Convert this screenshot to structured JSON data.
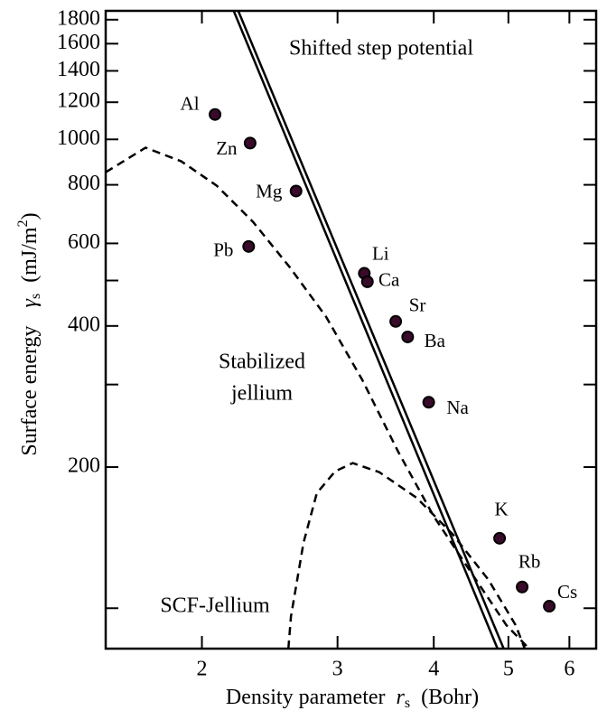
{
  "chart_data": {
    "type": "scatter",
    "xlabel": {
      "text": "Density parameter",
      "symbol": "r",
      "sub": "s",
      "unit": "(Bohr)"
    },
    "ylabel": {
      "text": "Surface energy",
      "symbol": "γ",
      "sub": "s",
      "unit_pre": "(mJ/m",
      "sup": "2",
      "unit_post": ")"
    },
    "xscale": "log",
    "yscale": "log",
    "xlim": [
      1.5,
      6.5
    ],
    "ylim": [
      82,
      1880
    ],
    "xticks": [
      2,
      3,
      4,
      5,
      6
    ],
    "yticks": [
      200,
      400,
      600,
      800,
      1000,
      1200,
      1400,
      1600,
      1800
    ],
    "yticks_minor": [
      100,
      300,
      500
    ],
    "points": {
      "color": "#3a0a2a",
      "labels": [
        "Al",
        "Zn",
        "Mg",
        "Pb",
        "Li",
        "Ca",
        "Sr",
        "Ba",
        "Na",
        "K",
        "Rb",
        "Cs"
      ],
      "x": [
        2.08,
        2.31,
        2.65,
        2.3,
        3.25,
        3.28,
        3.57,
        3.7,
        3.94,
        4.87,
        5.21,
        5.65
      ],
      "values": [
        1130,
        982,
        776,
        591,
        518,
        497,
        409,
        379,
        275,
        141,
        111,
        101
      ]
    },
    "lines": [
      {
        "dash": false,
        "x": [
          2.2,
          4.84
        ],
        "values": [
          1878,
          82
        ]
      },
      {
        "dash": false,
        "x": [
          2.23,
          4.93
        ],
        "values": [
          1878,
          82
        ]
      },
      {
        "dash": true,
        "x": [
          1.5,
          1.69,
          1.88,
          2.09,
          2.33,
          2.6,
          2.9,
          3.23,
          3.6,
          4.0,
          4.46,
          4.97,
          5.32
        ],
        "values": [
          851,
          960,
          898,
          797,
          667,
          534,
          418,
          307,
          215,
          157,
          120,
          92,
          82
        ]
      },
      {
        "dash": true,
        "x": [
          2.59,
          2.61,
          2.71,
          2.82,
          2.98,
          3.14,
          3.4,
          3.8,
          4.23,
          4.71,
          5.11,
          5.25
        ],
        "values": [
          82,
          96,
          138,
          176,
          196,
          204,
          195,
          172,
          144,
          115,
          92,
          82
        ]
      }
    ],
    "annotations": [
      "Shifted step potential",
      "Stabilized",
      "jellium",
      "SCF-Jellium"
    ]
  }
}
